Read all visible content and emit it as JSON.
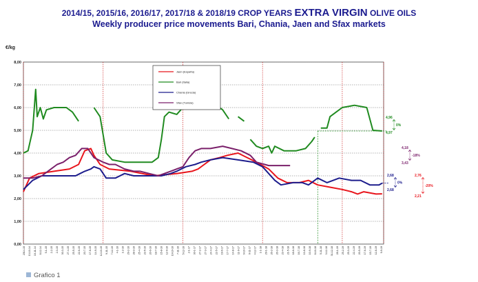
{
  "title": {
    "prefix": "2014/15,  2015/16, 2016/17, 2017/18  &  2018/19 CROP YEARS ",
    "emphasis": "EXTRA VIRGIN",
    "suffix": " OLIVE OILS",
    "subtitle": "Weekly producer price movements Bari, Chania, Jaen and Sfax markets"
  },
  "footer_label": "Grafico 1",
  "chart_data": {
    "type": "line",
    "ylabel": "€/kg",
    "ylim": [
      0,
      8
    ],
    "y_ticks": [
      "0,00",
      "1,00",
      "2,00",
      "3,00",
      "4,00",
      "5,00",
      "6,00",
      "7,00",
      "8,00"
    ],
    "weeks": 235,
    "legend": [
      "Jaén (España)",
      "Bari (Italia)",
      "Chania (Grecia)",
      "Sfax (Tunisia)"
    ],
    "colors": {
      "jaen": "#e8141b",
      "bari": "#1f8a1f",
      "chania": "#1c1c8c",
      "sfax": "#7a1f6a",
      "grid_h": "#666666",
      "grid_v": "#cc2222"
    },
    "series": [
      {
        "name": "Jaén (España)",
        "key": "jaen",
        "points": [
          [
            0,
            2.3
          ],
          [
            4,
            2.9
          ],
          [
            10,
            3.1
          ],
          [
            20,
            3.2
          ],
          [
            30,
            3.3
          ],
          [
            36,
            3.5
          ],
          [
            40,
            4.1
          ],
          [
            44,
            4.2
          ],
          [
            46,
            3.9
          ],
          [
            50,
            3.5
          ],
          [
            56,
            3.3
          ],
          [
            70,
            3.2
          ],
          [
            85,
            3.0
          ],
          [
            100,
            3.1
          ],
          [
            110,
            3.2
          ],
          [
            114,
            3.3
          ],
          [
            118,
            3.5
          ],
          [
            122,
            3.7
          ],
          [
            128,
            3.8
          ],
          [
            133,
            3.9
          ],
          [
            140,
            4.0
          ],
          [
            146,
            3.8
          ],
          [
            152,
            3.6
          ],
          [
            160,
            3.3
          ],
          [
            166,
            2.9
          ],
          [
            172,
            2.7
          ],
          [
            180,
            2.7
          ],
          [
            186,
            2.8
          ],
          [
            192,
            2.6
          ],
          [
            200,
            2.5
          ],
          [
            208,
            2.4
          ],
          [
            214,
            2.3
          ],
          [
            218,
            2.2
          ],
          [
            222,
            2.3
          ],
          [
            230,
            2.2
          ],
          [
            234,
            2.21
          ]
        ]
      },
      {
        "name": "Bari (Italia)",
        "key": "bari",
        "segments": [
          [
            [
              0,
              4.0
            ],
            [
              3,
              4.1
            ],
            [
              6,
              5.0
            ],
            [
              8,
              6.8
            ],
            [
              9,
              5.6
            ],
            [
              11,
              6.0
            ],
            [
              13,
              5.5
            ],
            [
              15,
              5.9
            ],
            [
              20,
              6.0
            ],
            [
              28,
              6.0
            ],
            [
              32,
              5.8
            ],
            [
              36,
              5.4
            ]
          ],
          [
            [
              46,
              6.0
            ],
            [
              50,
              5.6
            ],
            [
              54,
              4.0
            ],
            [
              58,
              3.7
            ],
            [
              66,
              3.6
            ],
            [
              78,
              3.6
            ],
            [
              84,
              3.6
            ],
            [
              88,
              3.8
            ],
            [
              90,
              4.6
            ],
            [
              92,
              5.6
            ],
            [
              95,
              5.8
            ],
            [
              100,
              5.7
            ],
            [
              104,
              6.0
            ],
            [
              108,
              6.1
            ],
            [
              112,
              6.2
            ],
            [
              118,
              6.1
            ],
            [
              126,
              6.1
            ],
            [
              130,
              5.9
            ],
            [
              134,
              5.5
            ]
          ],
          [
            [
              140,
              5.6
            ],
            [
              144,
              5.4
            ]
          ],
          [
            [
              148,
              4.6
            ],
            [
              152,
              4.3
            ],
            [
              156,
              4.2
            ],
            [
              160,
              4.3
            ],
            [
              162,
              4.0
            ],
            [
              164,
              4.3
            ],
            [
              170,
              4.1
            ],
            [
              178,
              4.1
            ],
            [
              184,
              4.2
            ],
            [
              188,
              4.5
            ],
            [
              190,
              4.7
            ]
          ],
          [
            [
              194,
              5.1
            ],
            [
              198,
              5.1
            ],
            [
              200,
              5.6
            ],
            [
              204,
              5.8
            ],
            [
              208,
              6.0
            ],
            [
              216,
              6.1
            ],
            [
              224,
              6.0
            ],
            [
              228,
              5.0
            ],
            [
              234,
              4.97
            ]
          ]
        ]
      },
      {
        "name": "Chania (Grecia)",
        "key": "chania",
        "points": [
          [
            0,
            2.4
          ],
          [
            6,
            2.8
          ],
          [
            12,
            3.0
          ],
          [
            20,
            3.0
          ],
          [
            28,
            3.0
          ],
          [
            34,
            3.0
          ],
          [
            37,
            3.1
          ],
          [
            40,
            3.2
          ],
          [
            44,
            3.3
          ],
          [
            46,
            3.4
          ],
          [
            50,
            3.3
          ],
          [
            54,
            2.9
          ],
          [
            60,
            2.9
          ],
          [
            66,
            3.1
          ],
          [
            72,
            3.0
          ],
          [
            80,
            3.0
          ],
          [
            90,
            3.0
          ],
          [
            96,
            3.1
          ],
          [
            100,
            3.2
          ],
          [
            106,
            3.4
          ],
          [
            112,
            3.5
          ],
          [
            116,
            3.6
          ],
          [
            122,
            3.7
          ],
          [
            130,
            3.8
          ],
          [
            140,
            3.7
          ],
          [
            150,
            3.6
          ],
          [
            156,
            3.4
          ],
          [
            160,
            3.1
          ],
          [
            164,
            2.8
          ],
          [
            168,
            2.6
          ],
          [
            176,
            2.7
          ],
          [
            182,
            2.7
          ],
          [
            186,
            2.6
          ],
          [
            192,
            2.9
          ],
          [
            198,
            2.7
          ],
          [
            206,
            2.9
          ],
          [
            214,
            2.8
          ],
          [
            220,
            2.8
          ],
          [
            226,
            2.6
          ],
          [
            232,
            2.6
          ],
          [
            234,
            2.68
          ]
        ]
      },
      {
        "name": "Sfax (Tunisia)",
        "key": "sfax",
        "points": [
          [
            0,
            2.9
          ],
          [
            6,
            2.9
          ],
          [
            12,
            3.0
          ],
          [
            18,
            3.3
          ],
          [
            22,
            3.5
          ],
          [
            26,
            3.6
          ],
          [
            30,
            3.8
          ],
          [
            34,
            3.9
          ],
          [
            38,
            4.2
          ],
          [
            42,
            4.2
          ],
          [
            46,
            3.8
          ],
          [
            52,
            3.6
          ],
          [
            56,
            3.5
          ],
          [
            60,
            3.5
          ],
          [
            66,
            3.3
          ],
          [
            72,
            3.2
          ],
          [
            76,
            3.2
          ],
          [
            82,
            3.1
          ],
          [
            88,
            3.0
          ],
          [
            92,
            3.1
          ],
          [
            96,
            3.2
          ],
          [
            100,
            3.3
          ],
          [
            104,
            3.4
          ],
          [
            108,
            3.8
          ],
          [
            112,
            4.1
          ],
          [
            116,
            4.2
          ],
          [
            122,
            4.2
          ],
          [
            130,
            4.3
          ],
          [
            136,
            4.2
          ],
          [
            142,
            4.1
          ],
          [
            148,
            3.9
          ],
          [
            152,
            3.6
          ],
          [
            160,
            3.45
          ],
          [
            170,
            3.45
          ],
          [
            174,
            3.45
          ]
        ]
      }
    ],
    "reference_lines": [
      {
        "key": "bari",
        "level": 4.97,
        "from": 192,
        "to": 234,
        "dashed": true
      },
      {
        "key": "chania",
        "level": 2.68,
        "from": 234,
        "to": 234,
        "dashed": true
      }
    ],
    "annotations": [
      {
        "key": "bari",
        "top": "4,96",
        "bottom": "4,97",
        "pct": "0%"
      },
      {
        "key": "sfax",
        "top": "4,18",
        "bottom": "3,43",
        "pct": "-18%"
      },
      {
        "key": "chania",
        "top": "2,68",
        "bottom": "2,68",
        "pct": "0%"
      },
      {
        "key": "jaen",
        "top": "2,76",
        "bottom": "2,21",
        "pct": "-20%"
      }
    ],
    "x_tick_labels": [
      "2014-15",
      "13-10-14",
      "10-11-14",
      "8-12-14",
      "5-1-15",
      "2-2-15",
      "2-3-15",
      "30-3-15",
      "27-4-15",
      "25-5-15",
      "22-6-15",
      "20-7-15",
      "17-8-15",
      "14-9-15",
      "12-10-15",
      "9-11-15",
      "7-12-15",
      "4-1-16",
      "1-2-16",
      "29-2-16",
      "28-3-16",
      "25-4-16",
      "23-5-16",
      "20-6-16",
      "18-7-16",
      "15-8-16",
      "12-9-16",
      "10-10-16",
      "7-11-16",
      "5-12-16",
      "2-1-17",
      "30-1-17",
      "27-2-17",
      "27-3-17",
      "24-4-17",
      "22-5-17",
      "19-6-17",
      "17-7-17",
      "14-8-17",
      "11-9-17",
      "9-10-17",
      "6-11-17",
      "4-12-17",
      "1-1-18",
      "29-1-18",
      "26-2-18",
      "26-3-18",
      "23-4-18",
      "21-5-18",
      "18-6-18",
      "16-7-18",
      "13-8-18",
      "10-9-18",
      "8-10-18",
      "5-11-18",
      "3-12-18",
      "31-12-18",
      "28-1-19",
      "25-2-19",
      "25-3-19",
      "22-4-19",
      "20-5-19",
      "17-6-19",
      "15-7-19",
      "12-8-19",
      "9-9-19"
    ]
  }
}
